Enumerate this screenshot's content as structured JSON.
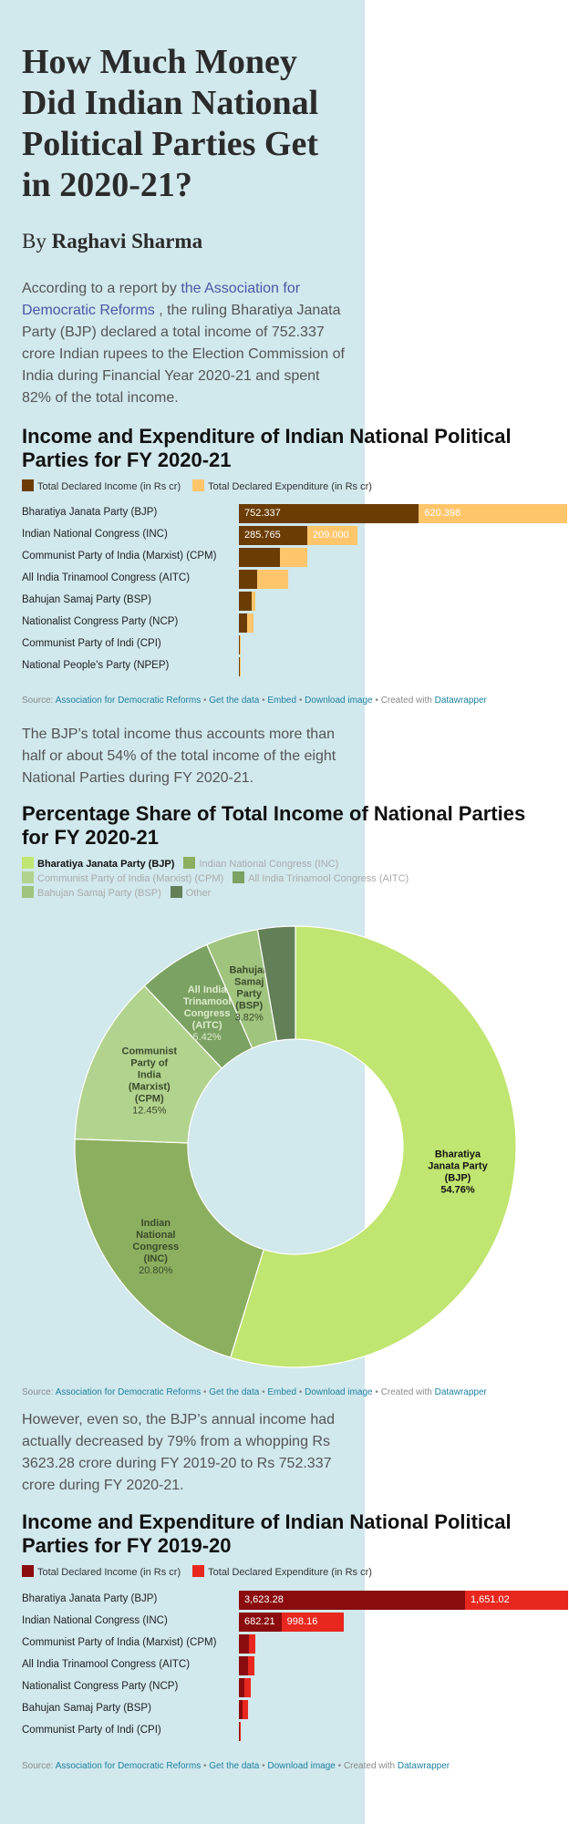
{
  "article": {
    "title": "How Much Money Did Indian National Political Parties Get in 2020-21?",
    "byline_prefix": "By",
    "author": "Raghavi Sharma",
    "para1_pre": "According to a report by ",
    "para1_link": "the Association for Democratic Reforms",
    "para1_post": " , the ruling Bharatiya Janata Party (BJP) declared a total income of 752.337 crore Indian rupees to the Election Commission of India during Financial Year 2020-21 and spent 82% of the total income.",
    "para2": "The BJP’s total income thus accounts more than half or about 54% of the total income of the eight National Parties during FY 2020-21.",
    "para3": "However, even so, the BJP’s annual income had actually decreased by 79% from a whopping Rs 3623.28 crore during FY 2019-20 to Rs 752.337 crore during FY 2020-21."
  },
  "source_footer": {
    "source_label": "Source: ",
    "source_link": "Association for Democratic Reforms",
    "get_data": "Get the data",
    "embed": "Embed",
    "download": "Download image",
    "created_with": "Created with ",
    "datawrapper": "Datawrapper",
    "sep": " • "
  },
  "chart_data": [
    {
      "type": "bar",
      "title": "Income and Expenditure of Indian National Political Parties for FY 2020-21",
      "categories": [
        "Bharatiya Janata Party (BJP)",
        "Indian National Congress (INC)",
        "Communist Party of India (Marxist) (CPM)",
        "All India Trinamool Congress (AITC)",
        "Bahujan Samaj Party (BSP)",
        "Nationalist Congress Party (NCP)",
        "Communist Party of Indi (CPI)",
        "National People's Party (NPEP)"
      ],
      "series": [
        {
          "name": "Total Declared Income (in Rs cr)",
          "color": "#6b3d05",
          "values": [
            752.337,
            285.765,
            171.04,
            74.41,
            52.46,
            34.56,
            2.87,
            0.42
          ]
        },
        {
          "name": "Total Declared Expenditure (in Rs cr)",
          "color": "#ffc56b",
          "values": [
            620.398,
            209.0,
            116.0,
            132.52,
            17.0,
            26.0,
            1.5,
            0.15
          ]
        }
      ],
      "labeled_rows": 2,
      "xlim": [
        0,
        1380
      ]
    },
    {
      "type": "pie",
      "title": "Percentage Share of Total Income of National Parties for FY 2020-21",
      "labels": [
        "Bharatiya Janata Party (BJP)",
        "Indian National Congress (INC)",
        "Communist Party of India (Marxist) (CPM)",
        "All India Trinamool Congress (AITC)",
        "Bahujan Samaj Party (BSP)",
        "Other"
      ],
      "slice_labels": [
        "Bharatiya Janata Party (BJP)",
        "Indian National Congress (INC)",
        "Communist Party of India (Marxist) (CPM)",
        "All India Trinamool Congress (AITC)",
        "Bahujan Samaj Party (BSP)",
        ""
      ],
      "values": [
        54.76,
        20.8,
        12.45,
        5.42,
        3.82,
        2.75
      ],
      "value_labels": [
        "54.76%",
        "20.80%",
        "12.45%",
        "5.42%",
        "3.82%",
        ""
      ],
      "colors": [
        "#c0e570",
        "#8caf5f",
        "#b2d38e",
        "#7ba262",
        "#a0c47e",
        "#627f58"
      ],
      "legend_placement": "top-left"
    },
    {
      "type": "bar",
      "title": "Income and Expenditure of Indian National Political Parties for FY 2019-20",
      "categories": [
        "Bharatiya Janata Party (BJP)",
        "Indian National Congress (INC)",
        "Communist Party of India (Marxist) (CPM)",
        "All India Trinamool Congress (AITC)",
        "Nationalist Congress Party (NCP)",
        "Bahujan Samaj Party (BSP)",
        "Communist Party of Indi (CPI)"
      ],
      "series": [
        {
          "name": "Total Declared Income (in Rs cr)",
          "color": "#8a0c0e",
          "values": [
            3623.28,
            682.21,
            158.62,
            143.68,
            85.58,
            58.25,
            6.58
          ]
        },
        {
          "name": "Total Declared Expenditure (in Rs cr)",
          "color": "#e8281f",
          "values": [
            1651.02,
            998.16,
            105.68,
            107.27,
            109.03,
            95.05,
            6.54
          ]
        }
      ],
      "labeled_rows": 2,
      "xlim": [
        0,
        5290
      ]
    }
  ]
}
